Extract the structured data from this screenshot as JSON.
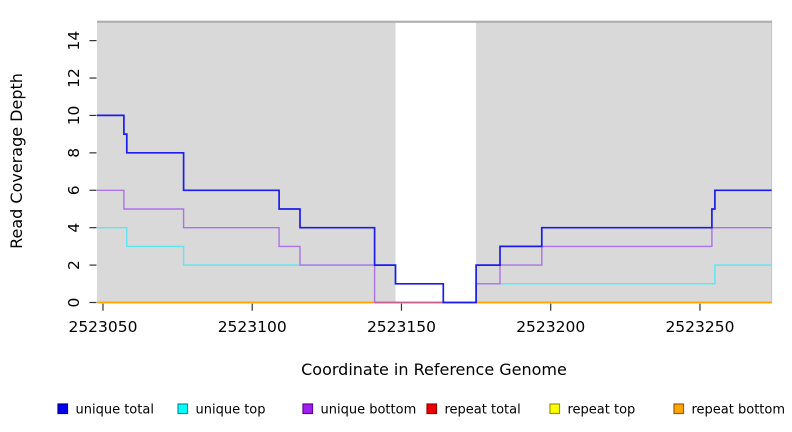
{
  "chart_data": {
    "type": "line",
    "subtype": "step-after",
    "title": "",
    "xlabel": "Coordinate in Reference Genome",
    "ylabel": "Read Coverage Depth",
    "xlim": [
      2523048,
      2523274
    ],
    "ylim": [
      0,
      15
    ],
    "x_ticks": [
      2523050,
      2523100,
      2523150,
      2523200,
      2523250
    ],
    "y_ticks": [
      0,
      2,
      4,
      6,
      8,
      10,
      12,
      14
    ],
    "grid": false,
    "plot_bg": "#d9d9d9",
    "top_reference_line": {
      "y": 15,
      "color": "#a9a9a9"
    },
    "white_band": {
      "x1": 2523148,
      "x2": 2523175
    },
    "legend_position": "bottom",
    "series": [
      {
        "name": "unique total",
        "line_color": "#1c1ceb",
        "legend_fill": "#0000ee",
        "legend_border": "#000090",
        "line_width": 1.7,
        "points": [
          [
            2523048,
            10
          ],
          [
            2523057,
            9
          ],
          [
            2523058,
            8
          ],
          [
            2523077,
            6
          ],
          [
            2523109,
            5
          ],
          [
            2523116,
            4
          ],
          [
            2523141,
            2
          ],
          [
            2523148,
            1
          ],
          [
            2523164,
            0
          ],
          [
            2523175,
            2
          ],
          [
            2523183,
            3
          ],
          [
            2523197,
            4
          ],
          [
            2523254,
            5
          ],
          [
            2523255,
            6
          ]
        ]
      },
      {
        "name": "unique top",
        "line_color": "#5ce6f2",
        "legend_fill": "#00ffff",
        "legend_border": "#009999",
        "line_width": 1.4,
        "points": [
          [
            2523048,
            4
          ],
          [
            2523058,
            3
          ],
          [
            2523077,
            2
          ],
          [
            2523148,
            1
          ],
          [
            2523164,
            0
          ],
          [
            2523175,
            1
          ],
          [
            2523255,
            2
          ]
        ]
      },
      {
        "name": "unique bottom",
        "line_color": "#ac73e6",
        "legend_fill": "#a020f0",
        "legend_border": "#600099",
        "line_width": 1.4,
        "points": [
          [
            2523048,
            6
          ],
          [
            2523057,
            5
          ],
          [
            2523077,
            4
          ],
          [
            2523109,
            3
          ],
          [
            2523116,
            2
          ],
          [
            2523141,
            0
          ],
          [
            2523175,
            1
          ],
          [
            2523183,
            2
          ],
          [
            2523197,
            3
          ],
          [
            2523254,
            4
          ]
        ]
      },
      {
        "name": "repeat total",
        "line_color": "#ee0000",
        "legend_fill": "#ee0000",
        "legend_border": "#990000",
        "line_width": 1.4,
        "points": [
          [
            2523048,
            0
          ]
        ]
      },
      {
        "name": "repeat top",
        "line_color": "#ffff00",
        "legend_fill": "#ffff00",
        "legend_border": "#999900",
        "line_width": 1.4,
        "points": [
          [
            2523048,
            0
          ]
        ]
      },
      {
        "name": "repeat bottom",
        "line_color": "#ffa500",
        "legend_fill": "#ffa500",
        "legend_border": "#a05a00",
        "line_width": 1.6,
        "points": [
          [
            2523048,
            0
          ]
        ]
      }
    ],
    "draw_order": [
      "repeat total",
      "repeat top",
      "repeat bottom",
      "unique top",
      "unique bottom",
      "unique total"
    ],
    "overlay_segments": [
      {
        "x1": 2523141,
        "x2": 2523164,
        "y": 0,
        "color": "#c9608d",
        "note": "unique-bottom at 0 blended over repeat-bottom"
      }
    ]
  }
}
